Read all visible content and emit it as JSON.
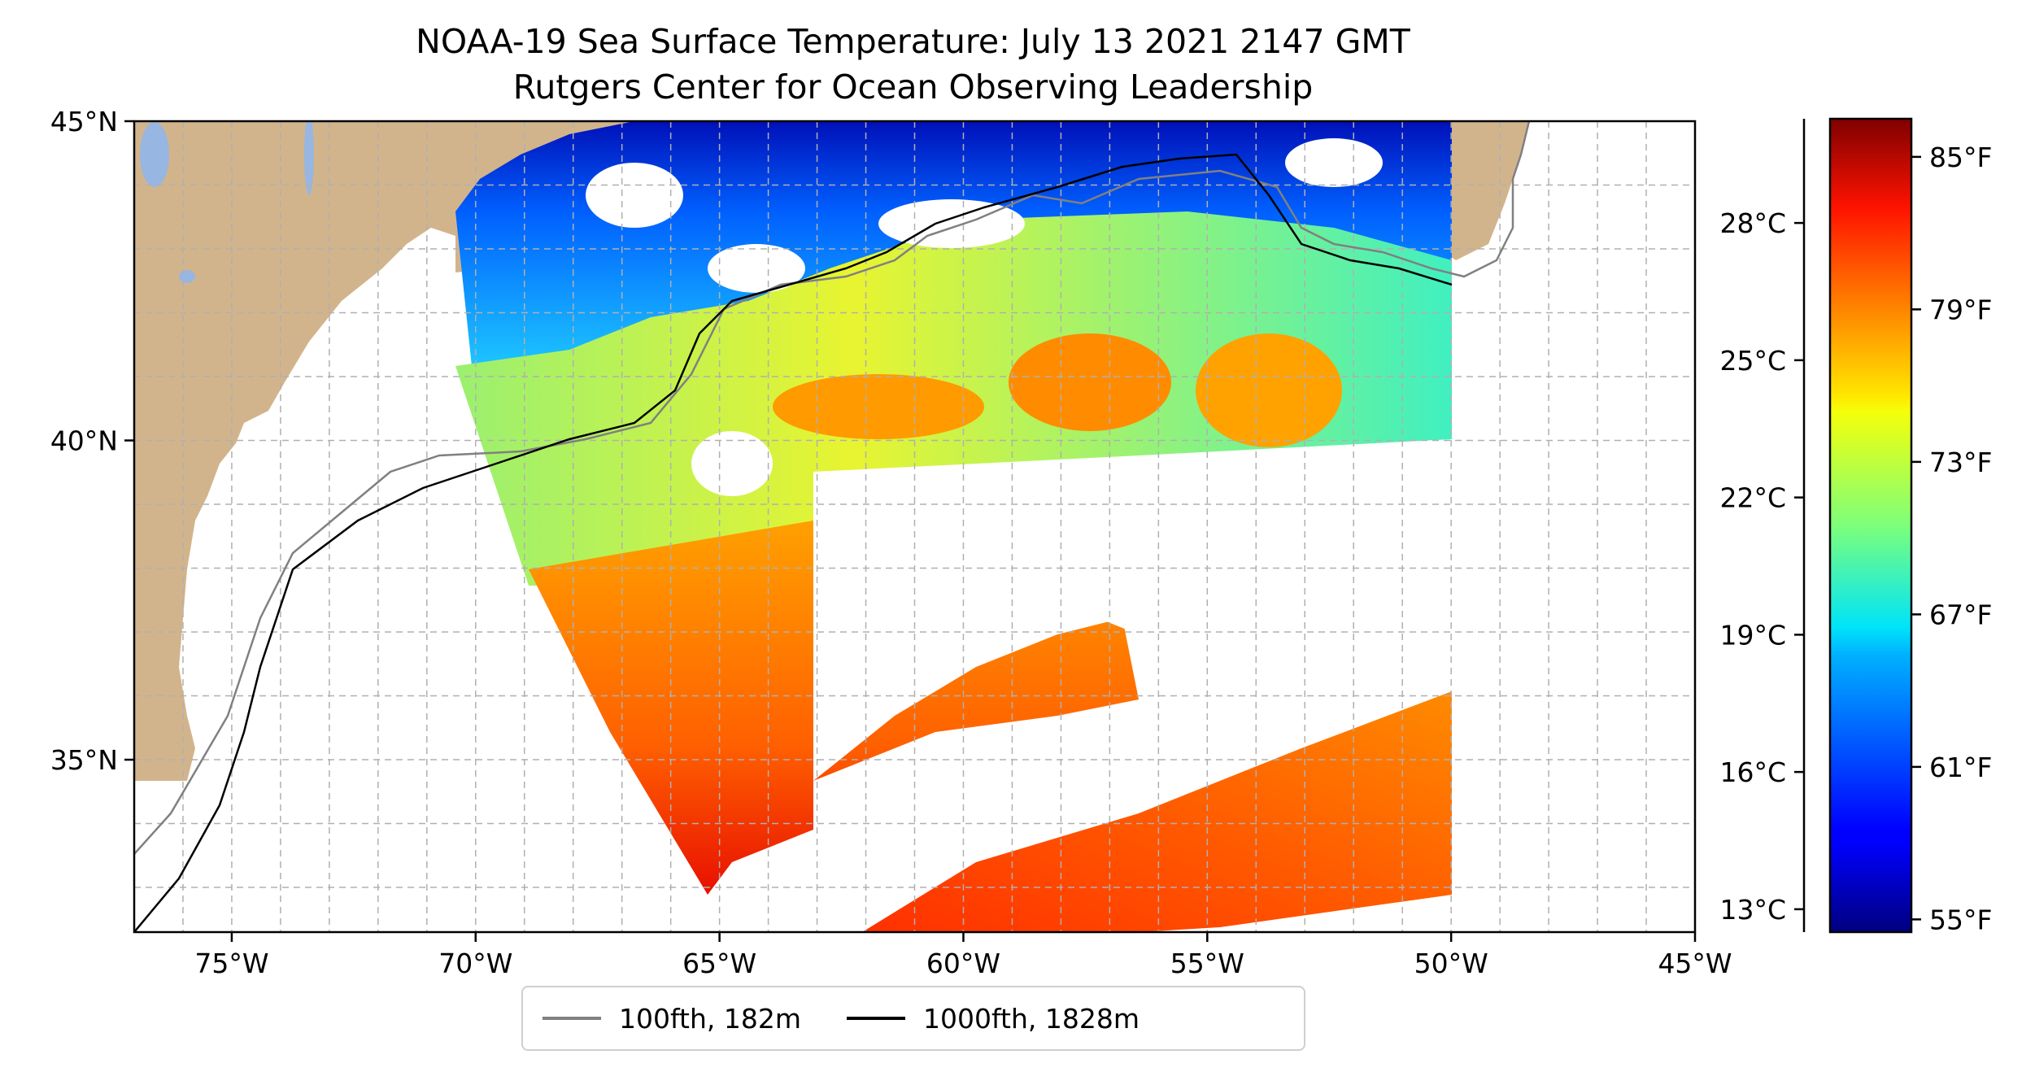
{
  "title": {
    "line1": "NOAA-19 Sea Surface Temperature: July 13 2021 2147 GMT",
    "line2": "Rutgers Center for Ocean Observing Leadership"
  },
  "map": {
    "lon_range": [
      -77,
      -45
    ],
    "lat_range": [
      32.3,
      45
    ],
    "lon_ticks": [
      {
        "value": -75,
        "label": "75°W"
      },
      {
        "value": -70,
        "label": "70°W"
      },
      {
        "value": -65,
        "label": "65°W"
      },
      {
        "value": -60,
        "label": "60°W"
      },
      {
        "value": -55,
        "label": "55°W"
      },
      {
        "value": -50,
        "label": "50°W"
      },
      {
        "value": -45,
        "label": "45°W"
      }
    ],
    "lat_ticks": [
      {
        "value": 45,
        "label": "45°N"
      },
      {
        "value": 40,
        "label": "40°N"
      },
      {
        "value": 35,
        "label": "35°N"
      }
    ],
    "gridlines": true,
    "land_color": "#d2b48c",
    "lake_color": "#97b6e1"
  },
  "colorbar": {
    "colormap": "jet",
    "range_f": [
      54.5,
      86.5
    ],
    "celsius_ticks": [
      {
        "value": 13,
        "label": "13°C"
      },
      {
        "value": 16,
        "label": "16°C"
      },
      {
        "value": 19,
        "label": "19°C"
      },
      {
        "value": 22,
        "label": "22°C"
      },
      {
        "value": 25,
        "label": "25°C"
      },
      {
        "value": 28,
        "label": "28°C"
      }
    ],
    "fahrenheit_ticks": [
      {
        "value": 55,
        "label": "55°F"
      },
      {
        "value": 61,
        "label": "61°F"
      },
      {
        "value": 67,
        "label": "67°F"
      },
      {
        "value": 73,
        "label": "73°F"
      },
      {
        "value": 79,
        "label": "79°F"
      },
      {
        "value": 85,
        "label": "85°F"
      }
    ]
  },
  "legend": {
    "placement": "bottom-center",
    "items": [
      {
        "label": "100fth, 182m",
        "color": "#808080"
      },
      {
        "label": "1000fth, 1828m",
        "color": "#000000"
      }
    ]
  }
}
